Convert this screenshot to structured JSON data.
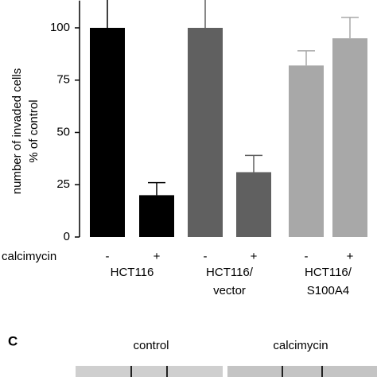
{
  "chart_data": {
    "type": "bar",
    "y_label": [
      "number of invaded cells",
      "% of control"
    ],
    "categories": [
      "-",
      "+",
      "-",
      "+",
      "-",
      "+"
    ],
    "values": [
      100,
      20,
      100,
      31,
      82,
      95
    ],
    "errors": [
      14,
      6,
      15,
      8,
      7,
      10
    ],
    "colors": [
      "#000000",
      "#000000",
      "#606060",
      "#606060",
      "#a8a8a8",
      "#a8a8a8"
    ],
    "row_label": "calcimycin",
    "groups": [
      [
        "HCT116"
      ],
      [
        "HCT116/",
        "vector"
      ],
      [
        "HCT116/",
        "S100A4"
      ]
    ],
    "ylim": [
      0,
      113
    ],
    "yticks": [
      0,
      25,
      50,
      75,
      100
    ]
  },
  "panel_c": {
    "label": "C",
    "columns": [
      "control",
      "calcimycin"
    ]
  }
}
